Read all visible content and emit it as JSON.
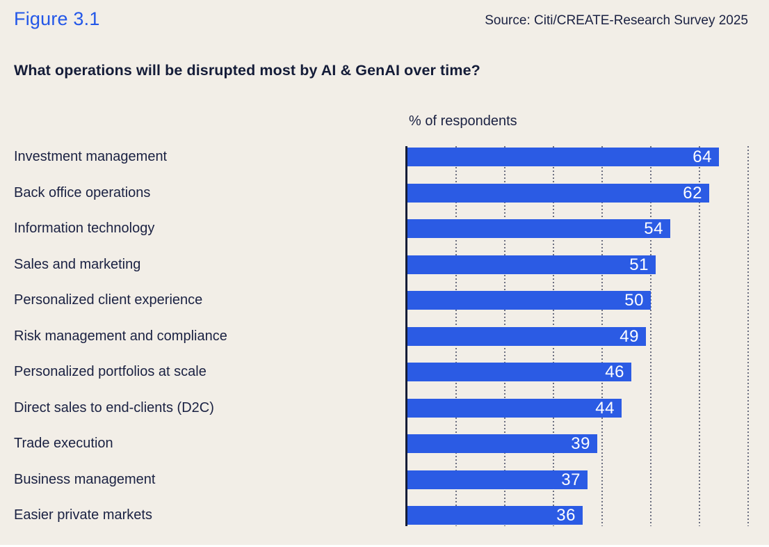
{
  "header": {
    "figure_label": "Figure 3.1",
    "source": "Source: Citi/CREATE-Research Survey 2025"
  },
  "title": "What operations will be disrupted most by AI & GenAI over time?",
  "chart_data": {
    "type": "bar",
    "orientation": "horizontal",
    "axis_label": "% of respondents",
    "categories": [
      "Investment management",
      "Back office operations",
      "Information technology",
      "Sales and marketing",
      "Personalized client experience",
      "Risk management and compliance",
      "Personalized portfolios at scale",
      "Direct sales to end-clients (D2C)",
      "Trade execution",
      "Business management",
      "Easier private markets"
    ],
    "values": [
      64,
      62,
      54,
      51,
      50,
      49,
      46,
      44,
      39,
      37,
      36
    ],
    "xlim": [
      0,
      70
    ],
    "gridlines": [
      10,
      20,
      30,
      40,
      50,
      60,
      70
    ],
    "grid_style": "dotted-vertical",
    "value_labels": "inside-end",
    "colors": {
      "bar": "#2B5BE4",
      "value_label": "#FFFFFF",
      "background": "#F2EEE7",
      "text": "#1A2142",
      "accent": "#2357E8",
      "axis": "#141C38"
    }
  }
}
